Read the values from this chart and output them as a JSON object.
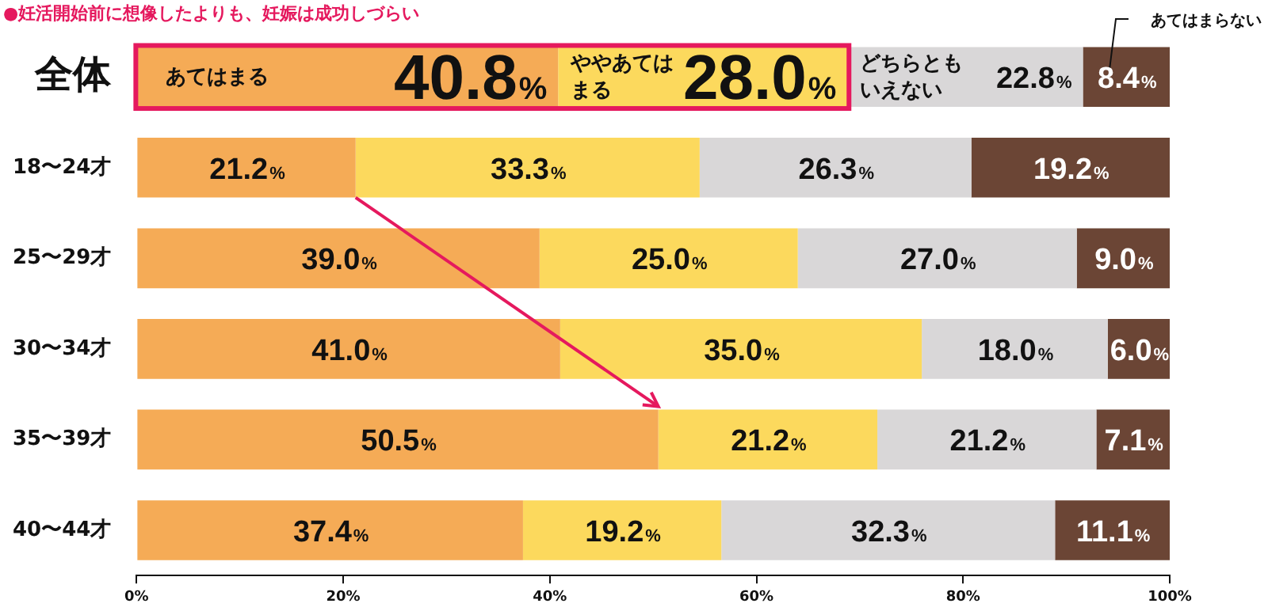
{
  "chart_data": {
    "type": "bar",
    "orientation": "horizontal",
    "stacked": true,
    "title": "●妊活開始前に想像したよりも、妊娠は成功しづらい",
    "categories": [
      "全体",
      "18〜24才",
      "25〜29才",
      "30〜34才",
      "35〜39才",
      "40〜44才"
    ],
    "series": [
      {
        "name": "あてはまる",
        "color": "#f5ab56",
        "values": [
          40.8,
          21.2,
          39.0,
          41.0,
          50.5,
          37.4
        ],
        "value_labels": [
          "40.8%",
          "21.2%",
          "39.0%",
          "41.0%",
          "50.5%",
          "37.4%"
        ]
      },
      {
        "name": "ややあてはまる",
        "color": "#fcd95d",
        "values": [
          28.0,
          33.3,
          25.0,
          35.0,
          21.2,
          19.2
        ],
        "value_labels": [
          "28.0%",
          "33.3%",
          "25.0%",
          "35.0%",
          "21.2%",
          "19.2%"
        ]
      },
      {
        "name": "どちらともいえない",
        "color": "#d9d7d8",
        "values": [
          22.8,
          26.3,
          27.0,
          18.0,
          21.2,
          32.3
        ],
        "value_labels": [
          "22.8%",
          "26.3%",
          "27.0%",
          "18.0%",
          "21.2%",
          "32.3%"
        ]
      },
      {
        "name": "あてはまらない",
        "color": "#6b4535",
        "values": [
          8.4,
          19.2,
          9.0,
          6.0,
          7.1,
          11.1
        ],
        "value_labels": [
          "8.4%",
          "19.2%",
          "9.0%",
          "6.0%",
          "7.1%",
          "11.1%"
        ]
      }
    ],
    "xlim": [
      0,
      100
    ],
    "xticks": [
      {
        "value": 0,
        "label": "0%"
      },
      {
        "value": 20,
        "label": "20%"
      },
      {
        "value": 40,
        "label": "40%"
      },
      {
        "value": 60,
        "label": "60%"
      },
      {
        "value": 80,
        "label": "80%"
      },
      {
        "value": 100,
        "label": "100%"
      }
    ],
    "grid": false,
    "legend": false
  }
}
